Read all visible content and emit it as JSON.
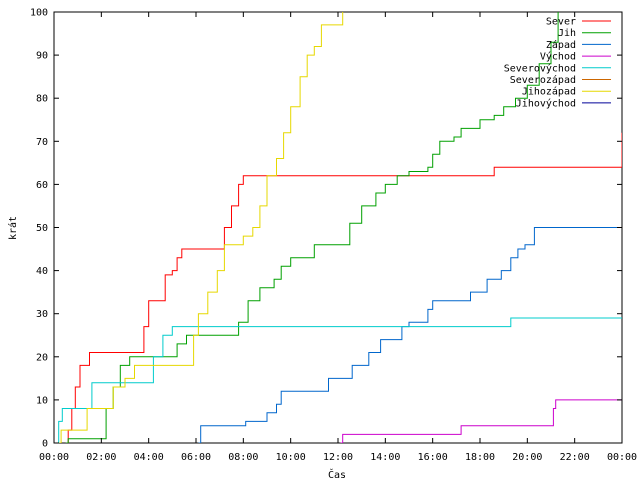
{
  "chart_data": {
    "type": "line",
    "xlabel": "Čas",
    "ylabel": "krát",
    "xlim": [
      0,
      24
    ],
    "ylim": [
      0,
      100
    ],
    "x_ticks": [
      "00:00",
      "02:00",
      "04:00",
      "06:00",
      "08:00",
      "10:00",
      "12:00",
      "14:00",
      "16:00",
      "18:00",
      "20:00",
      "22:00",
      "00:00"
    ],
    "y_ticks": [
      0,
      10,
      20,
      30,
      40,
      50,
      60,
      70,
      80,
      90,
      100
    ],
    "grid": false,
    "legend_position": "top-right",
    "series": [
      {
        "name": "Sever",
        "color": "#ff0000",
        "points": [
          [
            0.5,
            0
          ],
          [
            0.6,
            3
          ],
          [
            0.75,
            8
          ],
          [
            0.9,
            13
          ],
          [
            1.1,
            18
          ],
          [
            1.5,
            21
          ],
          [
            3.5,
            21
          ],
          [
            3.8,
            27
          ],
          [
            4.0,
            33
          ],
          [
            4.5,
            33
          ],
          [
            4.7,
            39
          ],
          [
            5.0,
            40
          ],
          [
            5.2,
            43
          ],
          [
            5.4,
            45
          ],
          [
            7.0,
            45
          ],
          [
            7.2,
            50
          ],
          [
            7.5,
            55
          ],
          [
            7.8,
            60
          ],
          [
            8.0,
            62
          ],
          [
            18.5,
            62
          ],
          [
            18.6,
            64
          ],
          [
            23.8,
            64
          ],
          [
            24,
            72
          ]
        ]
      },
      {
        "name": "Jih",
        "color": "#00a000",
        "points": [
          [
            0.5,
            0
          ],
          [
            0.6,
            1
          ],
          [
            2.0,
            1
          ],
          [
            2.2,
            8
          ],
          [
            2.5,
            13
          ],
          [
            2.8,
            18
          ],
          [
            3.2,
            20
          ],
          [
            4.8,
            20
          ],
          [
            5.2,
            23
          ],
          [
            5.6,
            25
          ],
          [
            7.5,
            25
          ],
          [
            7.8,
            28
          ],
          [
            8.2,
            33
          ],
          [
            8.7,
            36
          ],
          [
            9.3,
            38
          ],
          [
            9.6,
            41
          ],
          [
            10.0,
            43
          ],
          [
            10.7,
            43
          ],
          [
            11.0,
            46
          ],
          [
            12.0,
            46
          ],
          [
            12.5,
            51
          ],
          [
            13.0,
            55
          ],
          [
            13.6,
            58
          ],
          [
            14.0,
            60
          ],
          [
            14.5,
            62
          ],
          [
            15.0,
            63
          ],
          [
            15.8,
            64
          ],
          [
            16.0,
            67
          ],
          [
            16.3,
            70
          ],
          [
            16.9,
            71
          ],
          [
            17.2,
            73
          ],
          [
            17.8,
            73
          ],
          [
            18.0,
            75
          ],
          [
            18.6,
            76
          ],
          [
            19.0,
            78
          ],
          [
            19.5,
            80
          ],
          [
            20.0,
            83
          ],
          [
            20.5,
            88
          ],
          [
            21.0,
            93
          ],
          [
            21.3,
            100
          ]
        ]
      },
      {
        "name": "Západ",
        "color": "#0066cc",
        "points": [
          [
            6.1,
            0
          ],
          [
            6.2,
            4
          ],
          [
            7.8,
            4
          ],
          [
            8.1,
            5
          ],
          [
            8.7,
            5
          ],
          [
            9.0,
            7
          ],
          [
            9.4,
            9
          ],
          [
            9.6,
            12
          ],
          [
            11.3,
            12
          ],
          [
            11.6,
            15
          ],
          [
            12.3,
            15
          ],
          [
            12.6,
            18
          ],
          [
            13.0,
            18
          ],
          [
            13.3,
            21
          ],
          [
            13.8,
            24
          ],
          [
            14.5,
            24
          ],
          [
            14.7,
            27
          ],
          [
            15.0,
            28
          ],
          [
            15.5,
            28
          ],
          [
            15.8,
            31
          ],
          [
            16.0,
            33
          ],
          [
            17.3,
            33
          ],
          [
            17.6,
            35
          ],
          [
            18.0,
            35
          ],
          [
            18.3,
            38
          ],
          [
            18.9,
            40
          ],
          [
            19.3,
            43
          ],
          [
            19.6,
            45
          ],
          [
            19.9,
            46
          ],
          [
            20.3,
            50
          ],
          [
            24,
            50
          ]
        ]
      },
      {
        "name": "Východ",
        "color": "#cc00cc",
        "points": [
          [
            12.1,
            0
          ],
          [
            12.2,
            2
          ],
          [
            17.1,
            2
          ],
          [
            17.2,
            4
          ],
          [
            20.9,
            4
          ],
          [
            21.1,
            8
          ],
          [
            21.2,
            10
          ],
          [
            24,
            10
          ]
        ]
      },
      {
        "name": "Severovýchod",
        "color": "#00cccc",
        "points": [
          [
            0.05,
            0
          ],
          [
            0.2,
            5
          ],
          [
            0.35,
            8
          ],
          [
            1.0,
            8
          ],
          [
            1.6,
            14
          ],
          [
            3.8,
            14
          ],
          [
            4.2,
            20
          ],
          [
            4.6,
            25
          ],
          [
            5.0,
            27
          ],
          [
            19.2,
            27
          ],
          [
            19.3,
            29
          ],
          [
            24,
            29
          ]
        ]
      },
      {
        "name": "Severozápad",
        "color": "#cc6600",
        "points": []
      },
      {
        "name": "Jihozápad",
        "color": "#e6d800",
        "points": [
          [
            0.05,
            0
          ],
          [
            0.3,
            3
          ],
          [
            1.1,
            3
          ],
          [
            1.4,
            8
          ],
          [
            2.2,
            8
          ],
          [
            2.5,
            13
          ],
          [
            3.0,
            15
          ],
          [
            3.4,
            18
          ],
          [
            5.6,
            18
          ],
          [
            5.9,
            25
          ],
          [
            6.1,
            30
          ],
          [
            6.5,
            35
          ],
          [
            6.9,
            40
          ],
          [
            7.2,
            46
          ],
          [
            7.8,
            46
          ],
          [
            8.0,
            48
          ],
          [
            8.4,
            50
          ],
          [
            8.7,
            55
          ],
          [
            9.0,
            62
          ],
          [
            9.4,
            66
          ],
          [
            9.7,
            72
          ],
          [
            10.0,
            78
          ],
          [
            10.4,
            85
          ],
          [
            10.7,
            90
          ],
          [
            11.0,
            92
          ],
          [
            11.3,
            97
          ],
          [
            11.8,
            97
          ],
          [
            12.2,
            100
          ]
        ]
      },
      {
        "name": "Jihovýchod",
        "color": "#000099",
        "points": []
      }
    ]
  }
}
